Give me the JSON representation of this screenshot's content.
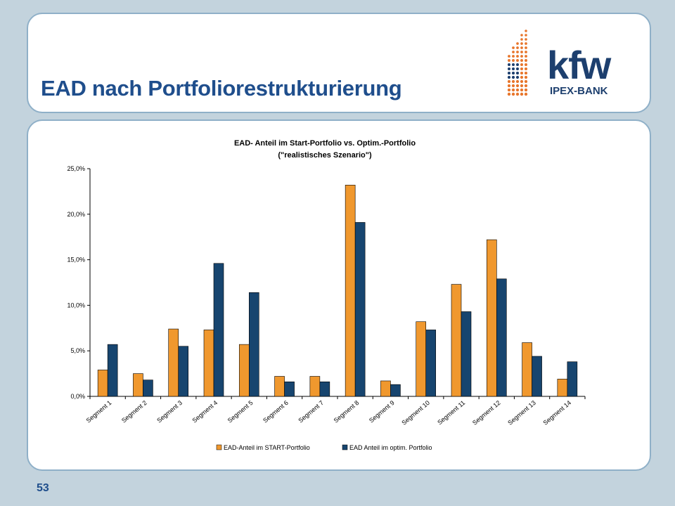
{
  "slide": {
    "title": "EAD nach Portfoliorestrukturierung",
    "page_number": "53"
  },
  "logo": {
    "wordmark": "kfw",
    "subtitle": "IPEX-BANK",
    "colors": {
      "orange": "#e8762c",
      "navy": "#1d3f6e"
    }
  },
  "chart_data": {
    "type": "bar",
    "title_line1": "EAD- Anteil im Start-Portfolio vs. Optim.-Portfolio",
    "title_line2": "(\"realistisches Szenario\")",
    "categories": [
      "Segment 1",
      "Segment 2",
      "Segment 3",
      "Segment 4",
      "Segment 5",
      "Segment 6",
      "Segment 7",
      "Segment 8",
      "Segment 9",
      "Segment 10",
      "Segment 11",
      "Segment 12",
      "Segment 13",
      "Segment 14"
    ],
    "series": [
      {
        "name": "EAD-Anteil im START-Portfolio",
        "color": "#f0982e",
        "values": [
          2.9,
          2.5,
          7.4,
          7.3,
          5.7,
          2.2,
          2.2,
          23.2,
          1.7,
          8.2,
          12.3,
          17.2,
          5.9,
          1.9
        ]
      },
      {
        "name": "EAD Anteil im optim. Portfolio",
        "color": "#17456f",
        "values": [
          5.7,
          1.8,
          5.5,
          14.6,
          11.4,
          1.6,
          1.6,
          19.1,
          1.3,
          7.3,
          9.3,
          12.9,
          4.4,
          3.8
        ]
      }
    ],
    "ylim": [
      0,
      25
    ],
    "yticks": [
      0,
      5,
      10,
      15,
      20,
      25
    ],
    "ytick_labels": [
      "0,0%",
      "5,0%",
      "10,0%",
      "15,0%",
      "20,0%",
      "25,0%"
    ],
    "xlabel": "",
    "ylabel": "",
    "grid": false,
    "legend_position": "bottom"
  }
}
